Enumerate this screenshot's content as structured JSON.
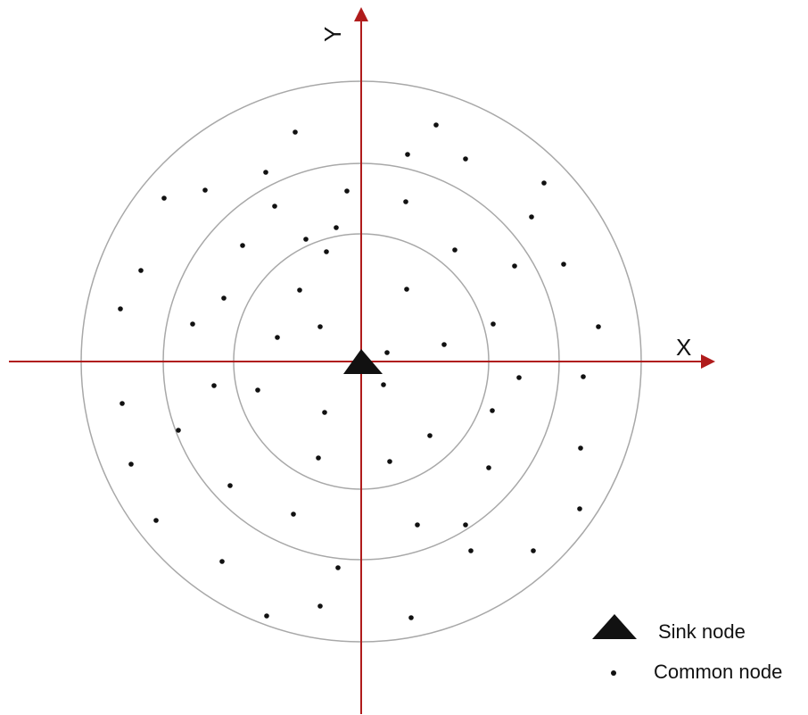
{
  "axes": {
    "x_label": "X",
    "y_label": "Y",
    "color": "#b01c1c"
  },
  "rings": {
    "count": 3,
    "color": "#a8a8a8"
  },
  "legend": {
    "sink_label": "Sink node",
    "common_label": "Common node"
  },
  "colors": {
    "node": "#111111"
  }
}
